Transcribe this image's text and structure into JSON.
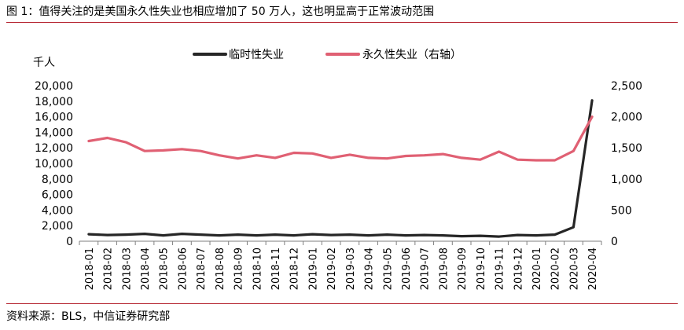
{
  "title": "图 1：值得关注的是美国永久性失业也相应增加了 50 万人，这也明显高于正常波动范围",
  "source": "资料来源：BLS，中信证券研究部",
  "chart_data": {
    "type": "line",
    "ylabel_left": "千人",
    "ylim_left": [
      0,
      20000
    ],
    "yticks_left": [
      "0",
      "2,000",
      "4,000",
      "6,000",
      "8,000",
      "10,000",
      "12,000",
      "14,000",
      "16,000",
      "18,000",
      "20,000"
    ],
    "ylim_right": [
      0,
      2500
    ],
    "yticks_right": [
      "0",
      "500",
      "1,000",
      "1,500",
      "2,000",
      "2,500"
    ],
    "legend_position": "top",
    "categories": [
      "2018-01",
      "2018-02",
      "2018-03",
      "2018-04",
      "2018-05",
      "2018-06",
      "2018-07",
      "2018-08",
      "2018-09",
      "2018-10",
      "2018-11",
      "2018-12",
      "2019-01",
      "2019-02",
      "2019-03",
      "2019-04",
      "2019-05",
      "2019-06",
      "2019-07",
      "2019-08",
      "2019-09",
      "2019-10",
      "2019-11",
      "2019-12",
      "2020-01",
      "2020-02",
      "2020-03",
      "2020-04"
    ],
    "series": [
      {
        "name": "临时性失业",
        "axis": "left",
        "color": "#262626",
        "values": [
          900,
          800,
          850,
          950,
          750,
          950,
          850,
          750,
          850,
          750,
          850,
          750,
          900,
          800,
          850,
          750,
          850,
          750,
          800,
          750,
          650,
          700,
          600,
          800,
          750,
          850,
          1800,
          18100
        ]
      },
      {
        "name": "永久性失业（右轴）",
        "axis": "right",
        "color": "#e06073",
        "values": [
          1610,
          1660,
          1590,
          1450,
          1460,
          1480,
          1450,
          1380,
          1330,
          1380,
          1340,
          1420,
          1410,
          1340,
          1390,
          1340,
          1330,
          1370,
          1380,
          1400,
          1340,
          1310,
          1440,
          1310,
          1300,
          1300,
          1450,
          2000
        ]
      }
    ]
  }
}
